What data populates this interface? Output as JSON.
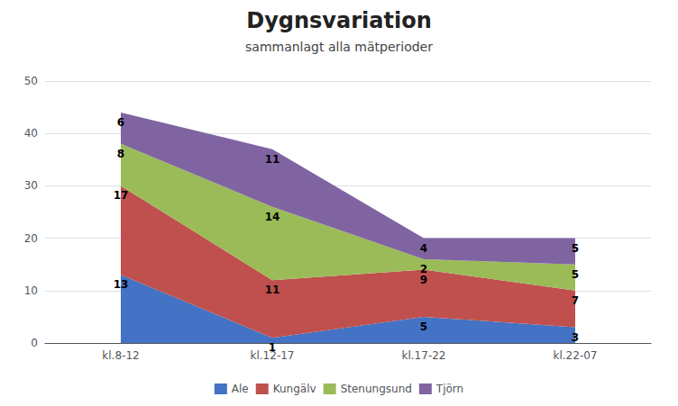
{
  "chart_data": {
    "type": "area",
    "title": "Dygnsvariation",
    "subtitle": "sammanlagt alla mätperioder",
    "categories": [
      "kl.8-12",
      "kl.12-17",
      "kl.17-22",
      "kl.22-07"
    ],
    "series": [
      {
        "name": "Ale",
        "color": "#4472C4",
        "values": [
          13,
          1,
          5,
          3
        ]
      },
      {
        "name": "Kungälv",
        "color": "#C0504D",
        "values": [
          17,
          11,
          9,
          7
        ]
      },
      {
        "name": "Stenungsund",
        "color": "#9BBB59",
        "values": [
          8,
          14,
          2,
          5
        ]
      },
      {
        "name": "Tjörn",
        "color": "#8064A2",
        "values": [
          6,
          11,
          4,
          5
        ]
      }
    ],
    "stacked": true,
    "data_labels": true,
    "ylim": [
      0,
      50
    ],
    "yticks": [
      0,
      10,
      20,
      30,
      40,
      50
    ],
    "grid": true,
    "legend": "bottom"
  }
}
